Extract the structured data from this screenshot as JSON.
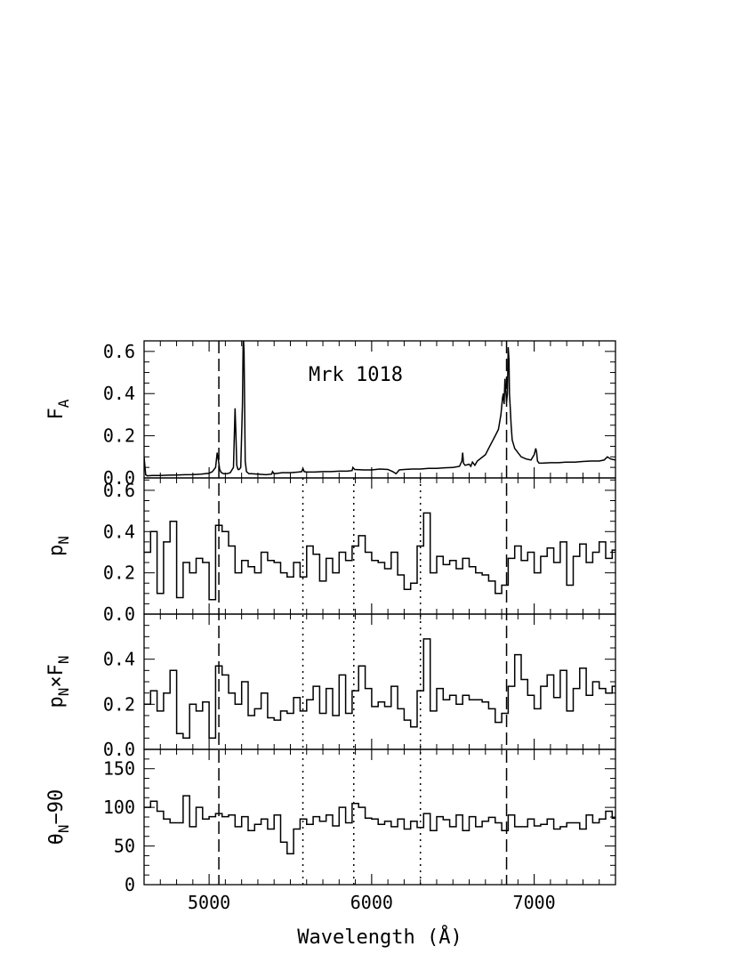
{
  "chart_data": {
    "type": "line",
    "object_label": "Mrk 1018",
    "xlabel": "Wavelength (Å)",
    "x_range": [
      4600,
      7500
    ],
    "x_ticks": [
      5000,
      6000,
      7000
    ],
    "dashed_lines_x": [
      5060,
      6830
    ],
    "dotted_lines_x": [
      5577,
      5890,
      6300
    ],
    "panels": [
      {
        "id": "fa",
        "ylabel_main": "F",
        "ylabel_sub": "A",
        "ylim": [
          0,
          0.65
        ],
        "yticks": [
          0.0,
          0.2,
          0.4,
          0.6
        ],
        "tick_labels": [
          "0.0",
          "0.2",
          "0.4",
          "0.6"
        ],
        "style": "line",
        "x": [
          4600,
          4610,
          4620,
          4650,
          4700,
          4750,
          4800,
          4850,
          4900,
          4950,
          5000,
          5020,
          5040,
          5050,
          5058,
          5065,
          5075,
          5090,
          5110,
          5130,
          5150,
          5160,
          5165,
          5170,
          5178,
          5185,
          5195,
          5205,
          5210,
          5215,
          5222,
          5230,
          5245,
          5260,
          5300,
          5350,
          5385,
          5390,
          5400,
          5450,
          5500,
          5550,
          5570,
          5577,
          5585,
          5600,
          5650,
          5700,
          5750,
          5800,
          5850,
          5880,
          5885,
          5895,
          5950,
          6000,
          6050,
          6100,
          6130,
          6150,
          6170,
          6200,
          6250,
          6300,
          6350,
          6400,
          6450,
          6500,
          6540,
          6555,
          6560,
          6565,
          6575,
          6600,
          6610,
          6620,
          6635,
          6650,
          6700,
          6720,
          6740,
          6760,
          6780,
          6795,
          6805,
          6810,
          6815,
          6820,
          6825,
          6830,
          6835,
          6840,
          6845,
          6848,
          6852,
          6858,
          6865,
          6880,
          6900,
          6920,
          6950,
          6980,
          7000,
          7010,
          7015,
          7020,
          7030,
          7050,
          7100,
          7150,
          7200,
          7250,
          7300,
          7350,
          7400,
          7430,
          7450,
          7470,
          7500
        ],
        "y": [
          0.1,
          0.015,
          0.01,
          0.012,
          0.012,
          0.013,
          0.014,
          0.015,
          0.016,
          0.018,
          0.022,
          0.03,
          0.05,
          0.12,
          0.08,
          0.04,
          0.025,
          0.02,
          0.02,
          0.025,
          0.05,
          0.33,
          0.2,
          0.06,
          0.04,
          0.04,
          0.05,
          0.35,
          0.68,
          0.6,
          0.08,
          0.03,
          0.02,
          0.02,
          0.018,
          0.015,
          0.018,
          0.03,
          0.02,
          0.025,
          0.025,
          0.028,
          0.03,
          0.045,
          0.03,
          0.028,
          0.028,
          0.03,
          0.03,
          0.032,
          0.032,
          0.035,
          0.05,
          0.04,
          0.038,
          0.038,
          0.042,
          0.04,
          0.03,
          0.02,
          0.038,
          0.04,
          0.042,
          0.042,
          0.045,
          0.045,
          0.048,
          0.05,
          0.055,
          0.08,
          0.12,
          0.07,
          0.06,
          0.065,
          0.055,
          0.075,
          0.06,
          0.08,
          0.11,
          0.14,
          0.17,
          0.2,
          0.23,
          0.3,
          0.38,
          0.4,
          0.35,
          0.47,
          0.42,
          0.36,
          0.4,
          0.62,
          0.56,
          0.4,
          0.34,
          0.25,
          0.18,
          0.14,
          0.12,
          0.1,
          0.09,
          0.085,
          0.11,
          0.14,
          0.12,
          0.08,
          0.07,
          0.07,
          0.072,
          0.072,
          0.075,
          0.075,
          0.078,
          0.08,
          0.08,
          0.085,
          0.1,
          0.09,
          0.085
        ]
      },
      {
        "id": "pn",
        "ylabel_main": "p",
        "ylabel_sub": "N",
        "ylim": [
          0,
          0.66
        ],
        "yticks": [
          0.0,
          0.2,
          0.4,
          0.6
        ],
        "tick_labels": [
          "0.0",
          "0.2",
          "0.4",
          "0.6"
        ],
        "style": "step",
        "bin_edges": [
          4600,
          4640,
          4680,
          4720,
          4760,
          4800,
          4840,
          4880,
          4920,
          4960,
          5000,
          5040,
          5080,
          5120,
          5160,
          5200,
          5240,
          5280,
          5320,
          5360,
          5400,
          5440,
          5480,
          5520,
          5560,
          5600,
          5640,
          5680,
          5720,
          5760,
          5800,
          5840,
          5880,
          5920,
          5960,
          6000,
          6040,
          6080,
          6120,
          6160,
          6200,
          6240,
          6280,
          6320,
          6360,
          6400,
          6440,
          6480,
          6520,
          6560,
          6600,
          6640,
          6680,
          6720,
          6760,
          6800,
          6840,
          6880,
          6920,
          6960,
          7000,
          7040,
          7080,
          7120,
          7160,
          7200,
          7240,
          7280,
          7320,
          7360,
          7400,
          7440,
          7480,
          7500
        ],
        "values": [
          0.3,
          0.4,
          0.1,
          0.35,
          0.45,
          0.08,
          0.25,
          0.2,
          0.27,
          0.25,
          0.07,
          0.43,
          0.4,
          0.33,
          0.2,
          0.26,
          0.23,
          0.2,
          0.3,
          0.26,
          0.25,
          0.2,
          0.18,
          0.25,
          0.18,
          0.33,
          0.29,
          0.16,
          0.27,
          0.2,
          0.3,
          0.26,
          0.33,
          0.38,
          0.3,
          0.26,
          0.25,
          0.22,
          0.3,
          0.19,
          0.12,
          0.15,
          0.33,
          0.49,
          0.2,
          0.28,
          0.24,
          0.26,
          0.22,
          0.27,
          0.23,
          0.2,
          0.19,
          0.16,
          0.1,
          0.14,
          0.27,
          0.33,
          0.26,
          0.3,
          0.2,
          0.28,
          0.32,
          0.25,
          0.35,
          0.14,
          0.28,
          0.34,
          0.25,
          0.3,
          0.35,
          0.27,
          0.31
        ]
      },
      {
        "id": "pnfn",
        "ylabel_main": "p",
        "ylabel_sub": "N",
        "ylabel_mid": "×F",
        "ylabel_sub2": "N",
        "ylim": [
          0,
          0.6
        ],
        "yticks": [
          0.0,
          0.2,
          0.4
        ],
        "tick_labels": [
          "0.0",
          "0.2",
          "0.4"
        ],
        "style": "step",
        "bin_edges": [
          4600,
          4640,
          4680,
          4720,
          4760,
          4800,
          4840,
          4880,
          4920,
          4960,
          5000,
          5040,
          5080,
          5120,
          5160,
          5200,
          5240,
          5280,
          5320,
          5360,
          5400,
          5440,
          5480,
          5520,
          5560,
          5600,
          5640,
          5680,
          5720,
          5760,
          5800,
          5840,
          5880,
          5920,
          5960,
          6000,
          6040,
          6080,
          6120,
          6160,
          6200,
          6240,
          6280,
          6320,
          6360,
          6400,
          6440,
          6480,
          6520,
          6560,
          6600,
          6640,
          6680,
          6720,
          6760,
          6800,
          6840,
          6880,
          6920,
          6960,
          7000,
          7040,
          7080,
          7120,
          7160,
          7200,
          7240,
          7280,
          7320,
          7360,
          7400,
          7440,
          7480,
          7500
        ],
        "values": [
          0.2,
          0.26,
          0.17,
          0.25,
          0.35,
          0.07,
          0.05,
          0.2,
          0.17,
          0.21,
          0.05,
          0.37,
          0.33,
          0.25,
          0.2,
          0.3,
          0.15,
          0.18,
          0.25,
          0.14,
          0.13,
          0.17,
          0.16,
          0.23,
          0.17,
          0.22,
          0.28,
          0.16,
          0.27,
          0.15,
          0.33,
          0.16,
          0.26,
          0.37,
          0.27,
          0.19,
          0.21,
          0.19,
          0.28,
          0.18,
          0.13,
          0.1,
          0.26,
          0.49,
          0.17,
          0.27,
          0.22,
          0.24,
          0.2,
          0.24,
          0.22,
          0.22,
          0.21,
          0.18,
          0.12,
          0.16,
          0.28,
          0.42,
          0.31,
          0.24,
          0.18,
          0.28,
          0.33,
          0.23,
          0.35,
          0.17,
          0.27,
          0.36,
          0.24,
          0.3,
          0.27,
          0.25,
          0.28
        ]
      },
      {
        "id": "theta",
        "ylabel_main": "θ",
        "ylabel_sub": "N",
        "ylabel_tail": "−90",
        "ylim": [
          0,
          175
        ],
        "yticks": [
          0,
          50,
          100,
          150
        ],
        "tick_labels": [
          "0",
          "50",
          "100",
          "150"
        ],
        "style": "step",
        "bin_edges": [
          4600,
          4640,
          4680,
          4720,
          4760,
          4800,
          4840,
          4880,
          4920,
          4960,
          5000,
          5040,
          5080,
          5120,
          5160,
          5200,
          5240,
          5280,
          5320,
          5360,
          5400,
          5440,
          5480,
          5520,
          5560,
          5600,
          5640,
          5680,
          5720,
          5760,
          5800,
          5840,
          5880,
          5920,
          5960,
          6000,
          6040,
          6080,
          6120,
          6160,
          6200,
          6240,
          6280,
          6320,
          6360,
          6400,
          6440,
          6480,
          6520,
          6560,
          6600,
          6640,
          6680,
          6720,
          6760,
          6800,
          6840,
          6880,
          6920,
          6960,
          7000,
          7040,
          7080,
          7120,
          7160,
          7200,
          7240,
          7280,
          7320,
          7360,
          7400,
          7440,
          7480,
          7500
        ],
        "values": [
          100,
          108,
          95,
          85,
          80,
          80,
          115,
          75,
          100,
          85,
          88,
          92,
          88,
          90,
          75,
          88,
          70,
          78,
          85,
          72,
          90,
          55,
          40,
          72,
          85,
          78,
          88,
          82,
          90,
          76,
          100,
          80,
          105,
          100,
          86,
          85,
          78,
          82,
          75,
          85,
          72,
          82,
          74,
          92,
          70,
          88,
          84,
          75,
          90,
          70,
          88,
          75,
          82,
          87,
          80,
          70,
          90,
          75,
          75,
          85,
          76,
          78,
          85,
          72,
          75,
          80,
          80,
          72,
          90,
          80,
          85,
          95,
          86
        ]
      }
    ]
  }
}
